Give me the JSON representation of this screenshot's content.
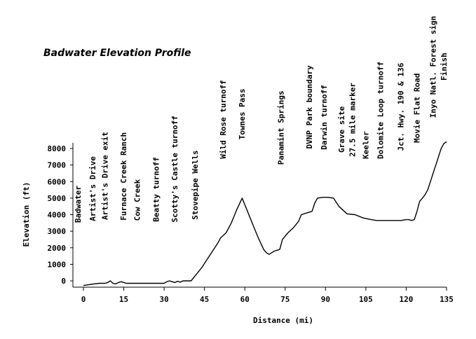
{
  "chart_data": {
    "type": "line",
    "title": "Badwater Elevation Profile",
    "xlabel": "Distance (mi)",
    "ylabel": "Elevation (ft)",
    "xlim": [
      0,
      135
    ],
    "ylim": [
      0,
      8500
    ],
    "x_ticks": [
      0,
      15,
      30,
      45,
      60,
      75,
      90,
      105,
      120,
      135
    ],
    "y_ticks": [
      0,
      1000,
      2000,
      3000,
      4000,
      5000,
      6000,
      7000,
      8000
    ],
    "grid": false,
    "series": [
      {
        "x": [
          0,
          2,
          4,
          6,
          8,
          9,
          10,
          11,
          12,
          13,
          14,
          15,
          16,
          17,
          18,
          20,
          22,
          25,
          28,
          30,
          31,
          32,
          33,
          34,
          35,
          36,
          37,
          38,
          40,
          42,
          44,
          46,
          48,
          50,
          51,
          53,
          55,
          57,
          59,
          61,
          63,
          65,
          67,
          68,
          69,
          70,
          71,
          72,
          73,
          74,
          76,
          78,
          80,
          81,
          83,
          85,
          86,
          87,
          89,
          91,
          93,
          95,
          98,
          101,
          104,
          107,
          109,
          112,
          115,
          118,
          120,
          121,
          122,
          123,
          124,
          125,
          126,
          127,
          128,
          129,
          130,
          131,
          132,
          133,
          134,
          135
        ],
        "y": [
          -280,
          -230,
          -180,
          -150,
          -150,
          -100,
          0,
          -150,
          -180,
          -100,
          -50,
          -100,
          -150,
          -150,
          -150,
          -150,
          -150,
          -150,
          -150,
          -150,
          -50,
          0,
          -50,
          -100,
          -20,
          -80,
          0,
          0,
          0,
          400,
          800,
          1300,
          1800,
          2300,
          2600,
          2900,
          3500,
          4300,
          5000,
          4200,
          3400,
          2600,
          1900,
          1700,
          1600,
          1700,
          1800,
          1850,
          1900,
          2500,
          2900,
          3200,
          3600,
          4000,
          4100,
          4200,
          4700,
          5000,
          5050,
          5050,
          5000,
          4500,
          4050,
          4000,
          3800,
          3700,
          3650,
          3650,
          3650,
          3650,
          3700,
          3700,
          3650,
          3700,
          4200,
          4800,
          5000,
          5200,
          5500,
          6000,
          6500,
          7000,
          7500,
          8000,
          8300,
          8400
        ]
      }
    ],
    "landmarks": [
      {
        "label": "Badwater",
        "mile": 0
      },
      {
        "label": "Artist's Drive",
        "mile": 5.5
      },
      {
        "label": "Artist's Drive exit",
        "mile": 10
      },
      {
        "label": "Furnace Creek Ranch",
        "mile": 17
      },
      {
        "label": "Cow Creek",
        "mile": 22
      },
      {
        "label": "Beatty turnoff",
        "mile": 29
      },
      {
        "label": "Scotty's Castle turnoff",
        "mile": 36
      },
      {
        "label": "Stovepipe Wells",
        "mile": 43.5
      },
      {
        "label": "Wild Rose turnoff",
        "mile": 54
      },
      {
        "label": "Townes Pass",
        "mile": 61
      },
      {
        "label": "Panamint Springs",
        "mile": 75.5
      },
      {
        "label": "DVNP Park boundary",
        "mile": 86
      },
      {
        "label": "Darwin turnoff",
        "mile": 91.5
      },
      {
        "label": "Grave site",
        "mile": 98
      },
      {
        "label": "27.5 mile marker",
        "mile": 102
      },
      {
        "label": "Keeler",
        "mile": 107
      },
      {
        "label": "Dolomite Loop turnoff",
        "mile": 112.5
      },
      {
        "label": "Jct. Hwy. 190 & 136",
        "mile": 120
      },
      {
        "label": "Movie Flat Road",
        "mile": 126
      },
      {
        "label": "Inyo Natl. Forest sign",
        "mile": 132
      },
      {
        "label": "Finish",
        "mile": 136
      }
    ]
  }
}
